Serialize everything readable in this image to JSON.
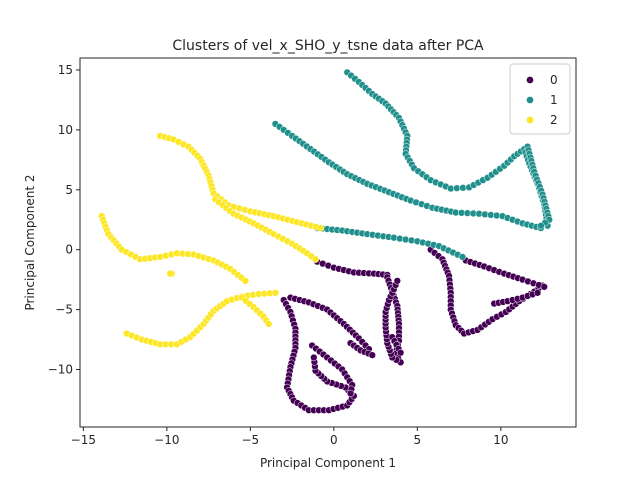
{
  "chart_data": {
    "type": "scatter",
    "title": "Clusters of vel_x_SHO_y_tsne data after PCA",
    "xlabel": "Principal Component 1",
    "ylabel": "Principal Component 2",
    "xlim": [
      -15.2,
      14.5
    ],
    "ylim": [
      -14.8,
      16.0
    ],
    "xticks": [
      -15,
      -10,
      -5,
      0,
      5,
      10
    ],
    "yticks": [
      -10,
      -5,
      0,
      5,
      10,
      15
    ],
    "grid": false,
    "legend_position": "top-right",
    "series": [
      {
        "name": "0",
        "color": "#440154",
        "paths": [
          [
            [
              -1.0,
              -1.0
            ],
            [
              0,
              -1.5
            ],
            [
              1.2,
              -1.9
            ],
            [
              2.4,
              -2.0
            ],
            [
              3.2,
              -2.1
            ]
          ],
          [
            [
              -2.6,
              -4.0
            ],
            [
              -1.5,
              -4.4
            ],
            [
              -0.4,
              -5.0
            ],
            [
              0.6,
              -6.2
            ],
            [
              1.5,
              -7.4
            ],
            [
              2.1,
              -8.3
            ]
          ],
          [
            [
              -3.0,
              -4.2
            ],
            [
              -2.6,
              -5.2
            ],
            [
              -2.3,
              -6.6
            ],
            [
              -2.3,
              -8.2
            ],
            [
              -2.6,
              -9.8
            ],
            [
              -2.8,
              -11.5
            ],
            [
              -2.4,
              -12.6
            ],
            [
              -1.5,
              -13.4
            ],
            [
              -0.3,
              -13.4
            ],
            [
              0.8,
              -13.0
            ],
            [
              1.2,
              -12.2
            ],
            [
              0.7,
              -11.5
            ],
            [
              -0.4,
              -11.0
            ],
            [
              -1.1,
              -10.1
            ],
            [
              -1.2,
              -9.0
            ]
          ],
          [
            [
              -1.3,
              -8.0
            ],
            [
              -0.4,
              -9.0
            ],
            [
              0.5,
              -10.0
            ],
            [
              1.1,
              -11.3
            ],
            [
              1.0,
              -12.0
            ]
          ],
          [
            [
              3.2,
              -2.3
            ],
            [
              3.5,
              -3.5
            ],
            [
              3.8,
              -4.7
            ],
            [
              3.9,
              -6.2
            ],
            [
              3.9,
              -7.6
            ],
            [
              3.7,
              -8.7
            ],
            [
              4.0,
              -9.4
            ],
            [
              3.5,
              -9.0
            ],
            [
              3.2,
              -7.8
            ],
            [
              3.1,
              -6.5
            ],
            [
              3.1,
              -5.2
            ],
            [
              3.3,
              -4.2
            ],
            [
              3.6,
              -3.3
            ],
            [
              3.8,
              -2.6
            ]
          ],
          [
            [
              3.5,
              -7.3
            ],
            [
              4.0,
              -8.6
            ]
          ],
          [
            [
              5.8,
              0.0
            ],
            [
              6.5,
              -0.8
            ],
            [
              6.9,
              -2.2
            ],
            [
              7.0,
              -3.6
            ],
            [
              7.0,
              -5.0
            ],
            [
              7.3,
              -6.3
            ],
            [
              7.8,
              -7.0
            ],
            [
              8.6,
              -6.7
            ],
            [
              9.5,
              -5.8
            ],
            [
              10.3,
              -5.2
            ],
            [
              11.1,
              -4.3
            ],
            [
              12.0,
              -3.5
            ],
            [
              12.5,
              -3.0
            ]
          ],
          [
            [
              7.9,
              -0.9
            ],
            [
              9.0,
              -1.4
            ],
            [
              10.2,
              -2.0
            ],
            [
              11.3,
              -2.5
            ],
            [
              12.6,
              -3.1
            ]
          ],
          [
            [
              9.6,
              -4.5
            ],
            [
              10.4,
              -4.3
            ],
            [
              11.3,
              -4.0
            ],
            [
              12.2,
              -3.6
            ]
          ],
          [
            [
              1.0,
              -7.8
            ],
            [
              1.6,
              -8.4
            ],
            [
              2.3,
              -8.8
            ]
          ]
        ]
      },
      {
        "name": "1",
        "color": "#21908d",
        "paths": [
          [
            [
              0.8,
              14.8
            ],
            [
              1.5,
              14.0
            ],
            [
              2.3,
              13.0
            ],
            [
              3.1,
              12.2
            ],
            [
              3.9,
              11.0
            ],
            [
              4.4,
              9.5
            ],
            [
              4.3,
              8.0
            ],
            [
              4.8,
              6.8
            ],
            [
              5.8,
              5.8
            ],
            [
              7.0,
              5.1
            ],
            [
              8.1,
              5.2
            ],
            [
              9.2,
              6.0
            ],
            [
              10.2,
              7.0
            ],
            [
              10.8,
              7.8
            ],
            [
              11.4,
              8.4
            ],
            [
              11.7,
              7.2
            ],
            [
              12.2,
              5.5
            ],
            [
              12.6,
              3.8
            ],
            [
              12.8,
              2.0
            ]
          ],
          [
            [
              -3.5,
              10.5
            ],
            [
              -2.5,
              9.5
            ],
            [
              -1.4,
              8.4
            ],
            [
              -0.3,
              7.3
            ],
            [
              0.8,
              6.3
            ],
            [
              2.0,
              5.5
            ],
            [
              3.3,
              4.8
            ],
            [
              4.6,
              4.1
            ],
            [
              5.9,
              3.5
            ]
          ],
          [
            [
              5.9,
              3.5
            ],
            [
              7.3,
              3.1
            ],
            [
              8.7,
              3.0
            ],
            [
              10.1,
              2.8
            ],
            [
              11.3,
              2.2
            ],
            [
              12.4,
              1.8
            ]
          ],
          [
            [
              -1.0,
              1.8
            ],
            [
              0.5,
              1.6
            ],
            [
              2.0,
              1.3
            ],
            [
              3.6,
              1.0
            ],
            [
              5.0,
              0.7
            ],
            [
              6.3,
              0.3
            ],
            [
              7.7,
              -0.6
            ]
          ],
          [
            [
              11.6,
              8.6
            ],
            [
              12.0,
              6.5
            ],
            [
              12.5,
              4.6
            ],
            [
              12.9,
              2.5
            ],
            [
              12.4,
              2.0
            ]
          ]
        ]
      },
      {
        "name": "2",
        "color": "#fde725",
        "paths": [
          [
            [
              -10.4,
              9.5
            ],
            [
              -9.6,
              9.2
            ],
            [
              -8.7,
              8.6
            ],
            [
              -8.0,
              7.6
            ],
            [
              -7.5,
              6.2
            ],
            [
              -7.2,
              4.7
            ],
            [
              -6.3,
              3.7
            ],
            [
              -5.0,
              3.2
            ],
            [
              -3.6,
              2.8
            ],
            [
              -2.2,
              2.3
            ],
            [
              -0.8,
              1.8
            ]
          ],
          [
            [
              -7.1,
              4.2
            ],
            [
              -6.0,
              3.0
            ],
            [
              -4.8,
              2.2
            ],
            [
              -3.6,
              1.3
            ],
            [
              -2.5,
              0.5
            ],
            [
              -1.6,
              -0.3
            ],
            [
              -1.1,
              -0.8
            ]
          ],
          [
            [
              -13.9,
              2.8
            ],
            [
              -13.5,
              1.3
            ],
            [
              -12.7,
              0.0
            ],
            [
              -11.6,
              -0.8
            ],
            [
              -10.4,
              -0.6
            ],
            [
              -9.4,
              -0.3
            ],
            [
              -8.4,
              -0.4
            ],
            [
              -7.2,
              -0.9
            ],
            [
              -6.2,
              -1.6
            ],
            [
              -5.3,
              -2.6
            ]
          ],
          [
            [
              -12.4,
              -7.0
            ],
            [
              -11.5,
              -7.5
            ],
            [
              -10.4,
              -7.9
            ],
            [
              -9.4,
              -7.9
            ],
            [
              -8.6,
              -7.3
            ],
            [
              -7.8,
              -6.2
            ],
            [
              -7.2,
              -5.1
            ],
            [
              -6.4,
              -4.3
            ],
            [
              -5.5,
              -3.9
            ],
            [
              -4.5,
              -3.7
            ],
            [
              -3.5,
              -3.6
            ]
          ],
          [
            [
              -5.5,
              -4.0
            ],
            [
              -4.8,
              -4.8
            ],
            [
              -4.2,
              -5.6
            ],
            [
              -3.9,
              -6.2
            ]
          ],
          [
            [
              -9.7,
              -2.0
            ],
            [
              -9.8,
              -2.0
            ]
          ]
        ]
      }
    ]
  }
}
